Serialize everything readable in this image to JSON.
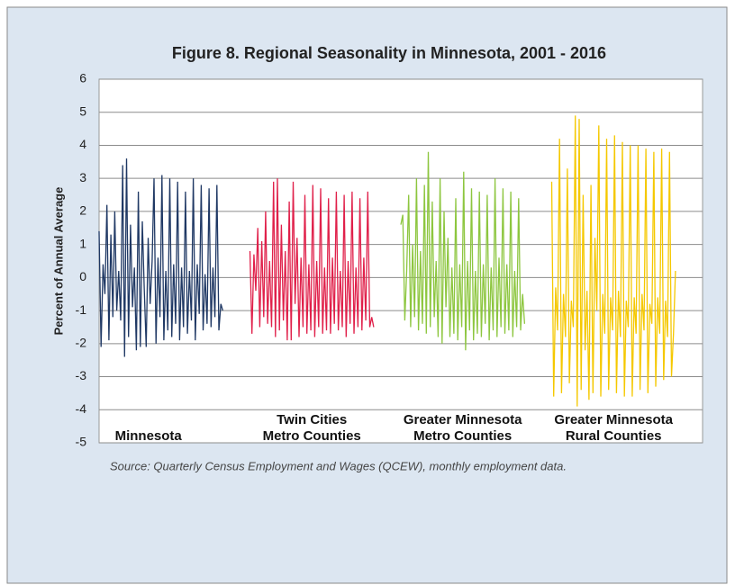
{
  "chart_data": {
    "type": "line",
    "title": "Figure 8. Regional Seasonality in Minnesota, 2001 - 2016",
    "y_label": "Percent of Annual Average",
    "source": "Source: Quarterly Census Employment and Wages (QCEW), monthly employment data.",
    "ylim": [
      -5,
      6
    ],
    "yticks": [
      -5,
      -4,
      -3,
      -2,
      -1,
      0,
      1,
      2,
      3,
      4,
      5,
      6
    ],
    "grid": true,
    "series": [
      {
        "name": "Minnesota",
        "color": "#1f3864",
        "values": [
          1.4,
          -2.1,
          0.4,
          -0.5,
          2.2,
          -1.9,
          1.3,
          -1.2,
          2.0,
          -1.0,
          0.2,
          -1.3,
          3.4,
          -2.4,
          3.6,
          -1.8,
          1.6,
          -0.9,
          0.3,
          -2.2,
          2.6,
          -2.1,
          1.7,
          -0.3,
          -2.1,
          1.2,
          -0.8,
          0.5,
          3.0,
          -2.0,
          0.6,
          -1.2,
          3.1,
          -1.9,
          0.2,
          -1.6,
          3.0,
          -1.8,
          0.4,
          -1.4,
          2.9,
          -1.9,
          0.3,
          -1.5,
          2.6,
          -1.7,
          0.2,
          -1.3,
          3.0,
          -1.9,
          0.4,
          -1.1,
          2.8,
          -1.6,
          0.1,
          -1.4,
          2.7,
          -1.5,
          0.3,
          -1.2,
          2.8,
          -1.6,
          -0.8,
          -1.0
        ]
      },
      {
        "name": "Twin Cities\nMetro Counties",
        "color": "#e0204a",
        "values": [
          0.8,
          -1.7,
          0.7,
          -0.4,
          1.5,
          -1.5,
          1.1,
          -1.2,
          2.0,
          -1.4,
          0.5,
          -1.5,
          2.9,
          -1.8,
          3.0,
          -1.6,
          1.6,
          -1.3,
          0.8,
          -1.9,
          2.3,
          -1.9,
          2.9,
          -0.8,
          1.2,
          -1.8,
          0.6,
          -1.5,
          2.5,
          -1.7,
          0.4,
          -1.6,
          2.8,
          -1.8,
          0.5,
          -1.5,
          2.7,
          -1.7,
          0.3,
          -1.6,
          2.4,
          -1.7,
          0.6,
          -1.4,
          2.6,
          -1.6,
          0.2,
          -1.5,
          2.5,
          -1.8,
          0.5,
          -1.4,
          2.6,
          -1.7,
          0.3,
          -1.5,
          2.4,
          -1.6,
          0.6,
          -1.3,
          2.6,
          -1.5,
          -1.2,
          -1.5
        ]
      },
      {
        "name": "Greater Minnesota\nMetro Counties",
        "color": "#8dc63f",
        "values": [
          1.6,
          1.9,
          -1.3,
          0.2,
          2.5,
          -1.5,
          1.0,
          -1.2,
          3.0,
          -1.6,
          0.8,
          -1.4,
          2.8,
          -1.7,
          3.8,
          -1.5,
          2.3,
          -1.2,
          0.5,
          -1.8,
          3.0,
          -2.0,
          2.0,
          -0.9,
          1.2,
          -1.8,
          0.3,
          -1.7,
          2.4,
          -1.9,
          0.4,
          -1.5,
          3.2,
          -2.2,
          0.5,
          -1.6,
          2.7,
          -1.9,
          0.2,
          -1.7,
          2.6,
          -1.8,
          0.4,
          -1.4,
          2.5,
          -1.9,
          0.3,
          -1.6,
          3.0,
          -1.8,
          0.6,
          -1.5,
          2.7,
          -1.7,
          0.4,
          -1.6,
          2.6,
          -1.8,
          0.2,
          -1.5,
          2.4,
          -1.6,
          -0.5,
          -1.4
        ]
      },
      {
        "name": "Greater Minnesota\nRural Counties",
        "color": "#f5c800",
        "values": [
          2.9,
          -3.6,
          -0.3,
          -1.6,
          4.2,
          -3.5,
          -0.5,
          -1.8,
          3.3,
          -3.2,
          -0.7,
          -1.5,
          4.9,
          -3.9,
          4.8,
          -3.4,
          2.5,
          -2.2,
          -0.4,
          -3.7,
          2.8,
          -3.5,
          1.2,
          -1.0,
          4.6,
          -3.6,
          -0.5,
          -1.7,
          4.2,
          -3.4,
          -0.6,
          -1.6,
          4.3,
          -3.5,
          -0.4,
          -1.8,
          4.1,
          -3.6,
          -0.7,
          -1.5,
          4.0,
          -3.6,
          -0.6,
          -1.7,
          4.0,
          -3.4,
          -0.5,
          -1.6,
          3.9,
          -3.5,
          -0.8,
          -1.4,
          3.8,
          -3.3,
          -0.6,
          -1.7,
          3.9,
          -3.1,
          -0.7,
          -1.8,
          3.8,
          -3.0,
          -1.7,
          0.2
        ]
      }
    ]
  }
}
